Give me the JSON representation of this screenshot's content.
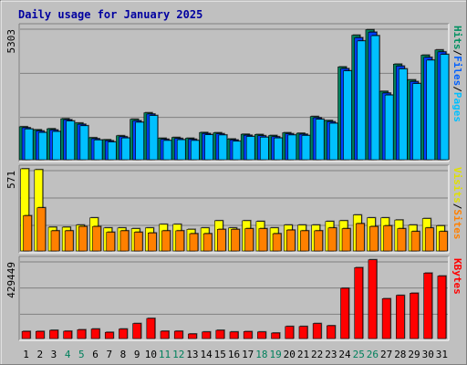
{
  "chart_data": {
    "title": "Daily usage for January 2025",
    "days": [
      "1",
      "2",
      "3",
      "4",
      "5",
      "6",
      "7",
      "8",
      "9",
      "10",
      "11",
      "12",
      "13",
      "14",
      "15",
      "16",
      "17",
      "18",
      "19",
      "20",
      "21",
      "22",
      "23",
      "24",
      "25",
      "26",
      "27",
      "28",
      "29",
      "30",
      "31"
    ],
    "weekend_days": [
      "4",
      "5",
      "11",
      "12",
      "18",
      "19",
      "25",
      "26"
    ],
    "panels": [
      {
        "id": "hits",
        "type": "bar",
        "max_label": "5303",
        "ylim": [
          0,
          5303
        ],
        "side_labels": [
          {
            "text": "Pages",
            "color": "#00c0ff"
          },
          {
            "text": "Files",
            "color": "#0060ff"
          },
          {
            "text": "Hits",
            "color": "#009060"
          }
        ],
        "series": [
          {
            "name": "Hits",
            "color": "#00805c",
            "values": [
              1320,
              1200,
              1240,
              1640,
              1470,
              880,
              800,
              960,
              1620,
              1880,
              860,
              890,
              860,
              1090,
              1080,
              830,
              1020,
              1010,
              970,
              1080,
              1060,
              1730,
              1570,
              3720,
              4990,
              5210,
              2740,
              3830,
              3200,
              4190,
              4400
            ]
          },
          {
            "name": "Files",
            "color": "#0040ff",
            "values": [
              1280,
              1150,
              1190,
              1600,
              1420,
              840,
              760,
              920,
              1560,
              1830,
              820,
              850,
              820,
              1050,
              1040,
              790,
              980,
              960,
              920,
              1040,
              1020,
              1680,
              1520,
              3650,
              4890,
              5110,
              2670,
              3750,
              3130,
              4100,
              4320
            ]
          },
          {
            "name": "Pages",
            "color": "#00c0ff",
            "values": [
              1230,
              1090,
              1130,
              1550,
              1360,
              790,
              710,
              870,
              1500,
              1770,
              770,
              800,
              770,
              1000,
              990,
              740,
              930,
              900,
              870,
              990,
              970,
              1620,
              1460,
              3560,
              4760,
              4970,
              2590,
              3640,
              3050,
              3990,
              4220
            ]
          }
        ]
      },
      {
        "id": "visits",
        "type": "bar",
        "max_label": "571",
        "ylim": [
          0,
          571
        ],
        "side_labels": [
          {
            "text": "Sites",
            "color": "#ff8000"
          },
          {
            "text": "Visits",
            "color": "#e0e000"
          }
        ],
        "series": [
          {
            "name": "Visits",
            "color": "#ffff00",
            "values": [
              571,
              565,
              165,
              165,
              180,
              230,
              160,
              160,
              155,
              160,
              185,
              185,
              150,
              160,
              210,
              160,
              210,
              205,
              160,
              180,
              180,
              180,
              205,
              210,
              250,
              230,
              230,
              215,
              180,
              225,
              175
            ]
          },
          {
            "name": "Sites",
            "color": "#ff8000",
            "values": [
              245,
              300,
              140,
              140,
              170,
              170,
              130,
              140,
              130,
              125,
              140,
              140,
              120,
              120,
              150,
              150,
              155,
              155,
              120,
              145,
              140,
              140,
              160,
              155,
              190,
              170,
              175,
              155,
              135,
              160,
              135
            ]
          }
        ]
      },
      {
        "id": "kbytes",
        "type": "bar",
        "max_label": "429449",
        "ylim": [
          0,
          429449
        ],
        "side_labels": [
          {
            "text": "KBytes",
            "color": "#ff0000"
          }
        ],
        "series": [
          {
            "name": "KBytes",
            "color": "#ff0000",
            "values": [
              39000,
              39000,
              45000,
              40000,
              48000,
              52000,
              34000,
              52000,
              82000,
              110000,
              40000,
              40000,
              25000,
              36000,
              45000,
              36000,
              38000,
              36000,
              30000,
              66000,
              66000,
              82000,
              70000,
              275000,
              388000,
              431000,
              218000,
              236000,
              248000,
              358000,
              342000
            ]
          }
        ]
      }
    ]
  }
}
